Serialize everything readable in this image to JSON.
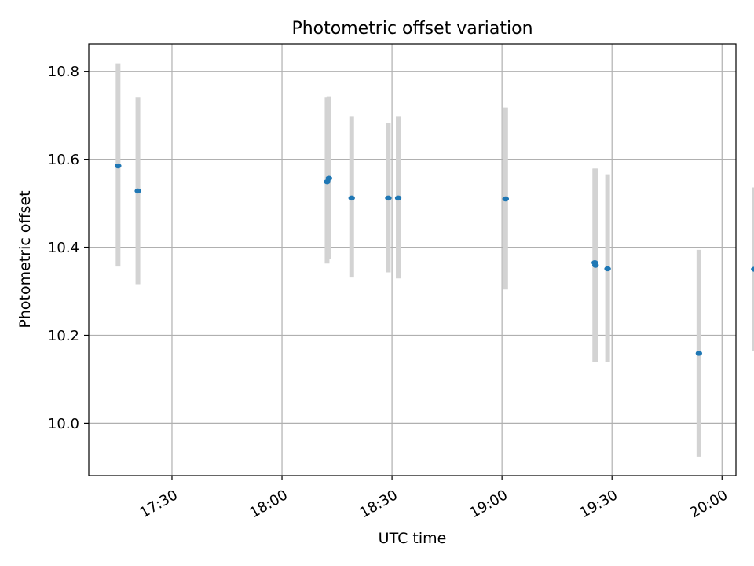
{
  "chart_data": {
    "type": "scatter",
    "title": "Photometric offset variation",
    "xlabel": "UTC time",
    "ylabel": "Photometric offset",
    "x_unit": "minutes since 17:00 UTC",
    "xlim": [
      7.3,
      183.8
    ],
    "ylim": [
      9.881,
      10.862
    ],
    "x_ticks": [
      {
        "value": 30,
        "label": "17:30"
      },
      {
        "value": 60,
        "label": "18:00"
      },
      {
        "value": 90,
        "label": "18:30"
      },
      {
        "value": 120,
        "label": "19:00"
      },
      {
        "value": 150,
        "label": "19:30"
      },
      {
        "value": 180,
        "label": "20:00"
      }
    ],
    "y_ticks": [
      {
        "value": 10.0,
        "label": "10.0"
      },
      {
        "value": 10.2,
        "label": "10.2"
      },
      {
        "value": 10.4,
        "label": "10.4"
      },
      {
        "value": 10.6,
        "label": "10.6"
      },
      {
        "value": 10.8,
        "label": "10.8"
      }
    ],
    "grid": true,
    "series": [
      {
        "name": "offset",
        "color": "#1f77b4",
        "errorbar_color": "#d3d3d3",
        "points": [
          {
            "x": 15.3,
            "y": 10.585,
            "low": 10.356,
            "high": 10.818
          },
          {
            "x": 20.7,
            "y": 10.528,
            "low": 10.316,
            "high": 10.74
          },
          {
            "x": 72.3,
            "y": 10.549,
            "low": 10.363,
            "high": 10.74
          },
          {
            "x": 72.8,
            "y": 10.557,
            "low": 10.373,
            "high": 10.743
          },
          {
            "x": 79.0,
            "y": 10.512,
            "low": 10.331,
            "high": 10.697
          },
          {
            "x": 89.0,
            "y": 10.512,
            "low": 10.343,
            "high": 10.683
          },
          {
            "x": 91.7,
            "y": 10.512,
            "low": 10.329,
            "high": 10.697
          },
          {
            "x": 121.0,
            "y": 10.51,
            "low": 10.304,
            "high": 10.718
          },
          {
            "x": 145.3,
            "y": 10.365,
            "low": 10.139,
            "high": 10.579
          },
          {
            "x": 145.5,
            "y": 10.359,
            "low": 10.139,
            "high": 10.579
          },
          {
            "x": 148.8,
            "y": 10.351,
            "low": 10.139,
            "high": 10.566
          },
          {
            "x": 173.7,
            "y": 10.159,
            "low": 9.924,
            "high": 10.394
          },
          {
            "x": 188.8,
            "y": 10.35,
            "low": 10.164,
            "high": 10.536
          }
        ]
      }
    ]
  }
}
